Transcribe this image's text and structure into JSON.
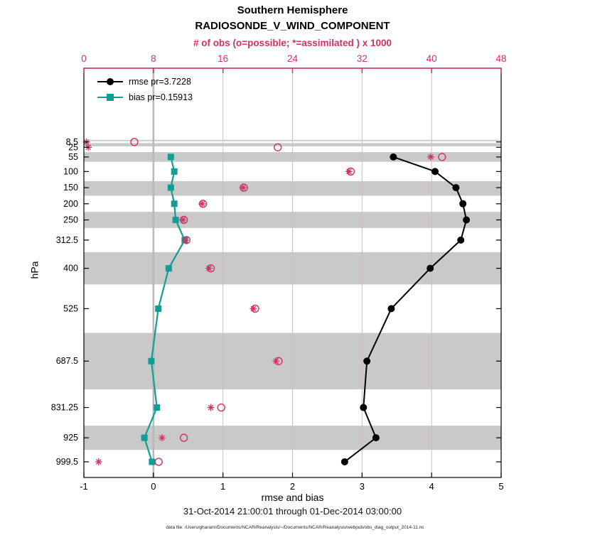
{
  "header": {
    "title": "Southern Hemisphere",
    "subtitle": "RADIOSONDE_V_WIND_COMPONENT",
    "obs_note": "# of obs (o=possible; *=assimilated ) x 1000"
  },
  "legend": {
    "items": [
      {
        "label": "rmse pr=3.7228",
        "marker": "filled-circle",
        "color": "#000000"
      },
      {
        "label": "bias pr=0.15913",
        "marker": "filled-square",
        "color": "#119e94"
      }
    ]
  },
  "footer": {
    "xlabel": "rmse and bias",
    "date_range": "31-Oct-2014 21:00:01 through 01-Dec-2014 03:00:00",
    "data_file": "data file: /Users/gharami/Documents/NCAR/Reanalysis/~/Documents/NCAR/Reanalysis/webpub/obs_diag_output_2014-11.nc"
  },
  "colors": {
    "obs_pink": "#cc3366",
    "bias_teal": "#119e94",
    "rmse_black": "#000000",
    "band_gray": "#c9c9c9",
    "grid_pink": "#d9b6c6",
    "zero_line_gray": "#b0b0b0"
  },
  "chart_data": {
    "type": "line",
    "orientation": "vertical-profile",
    "title": "Southern Hemisphere",
    "subtitle": "RADIOSONDE_V_WIND_COMPONENT",
    "x_bottom_axis": {
      "label": "rmse and bias",
      "range": [
        -1,
        5
      ],
      "ticks": [
        -1,
        0,
        1,
        2,
        3,
        4,
        5
      ]
    },
    "x_top_axis": {
      "label": "# of obs (o=possible; *=assimilated ) x 1000",
      "range": [
        0,
        48
      ],
      "ticks": [
        0,
        8,
        16,
        24,
        32,
        40,
        48
      ]
    },
    "y_axis": {
      "label": "hPa",
      "unit": "hPa",
      "direction": "reversed",
      "axis_range": [
        -220,
        1048
      ],
      "ticks": [
        8.5,
        25,
        55,
        100,
        150,
        200,
        250,
        312.5,
        400,
        525,
        687.5,
        831.25,
        925,
        999.5
      ]
    },
    "levels_hpa": [
      8.5,
      25,
      55,
      100,
      150,
      200,
      250,
      312.5,
      400,
      525,
      687.5,
      831.25,
      925,
      999.5
    ],
    "series": [
      {
        "name": "rmse",
        "legend": "rmse pr=3.7228",
        "style": "black line with filled circles, bottom axis",
        "values": [
          null,
          null,
          3.45,
          4.05,
          4.35,
          4.45,
          4.5,
          4.42,
          3.98,
          3.42,
          3.07,
          3.02,
          3.2,
          2.75
        ]
      },
      {
        "name": "bias",
        "legend": "bias pr=0.15913",
        "style": "teal line with filled squares, bottom axis",
        "values": [
          null,
          null,
          0.25,
          0.3,
          0.25,
          0.3,
          0.32,
          0.45,
          0.22,
          0.07,
          -0.03,
          0.05,
          -0.13,
          -0.02
        ]
      },
      {
        "name": "possible_obs_x1000",
        "legend": "o=possible",
        "style": "pink open circles, top axis",
        "values": [
          5.8,
          22.3,
          41.2,
          30.7,
          18.4,
          13.7,
          11.5,
          11.8,
          14.6,
          19.7,
          22.4,
          15.8,
          11.5,
          8.6
        ]
      },
      {
        "name": "assimilated_obs_x1000",
        "legend": "*=assimilated",
        "style": "pink asterisks, top axis",
        "values": [
          0.3,
          0.5,
          39.9,
          30.5,
          18.3,
          13.6,
          11.4,
          11.7,
          14.4,
          19.5,
          22.1,
          14.6,
          9.0,
          1.7
        ]
      }
    ],
    "shaded_bands_hpa": [
      [
        2,
        6
      ],
      [
        12,
        22
      ],
      [
        40,
        70
      ],
      [
        130,
        175
      ],
      [
        225,
        275
      ],
      [
        350,
        450
      ],
      [
        600,
        775
      ],
      [
        887.5,
        962.5
      ]
    ],
    "grid": "vertical pink gridlines at each x tick; gray vertical reference line at 0",
    "legend_position": "top-left inside axes"
  }
}
